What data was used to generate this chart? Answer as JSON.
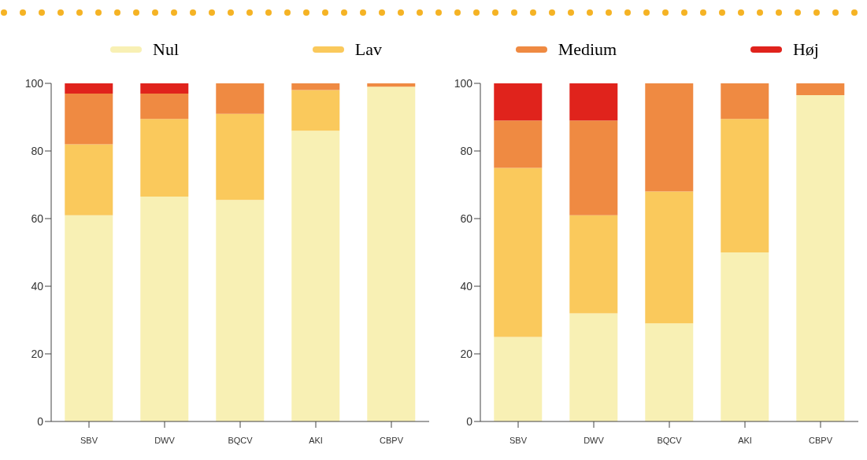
{
  "chart_data": [
    {
      "type": "bar",
      "stacked": true,
      "categories": [
        "SBV",
        "DWV",
        "BQCV",
        "AKI",
        "CBPV"
      ],
      "ylim": [
        0,
        100
      ],
      "yticks": [
        0,
        20,
        40,
        60,
        80,
        100
      ],
      "grid": false,
      "legend": "top",
      "series": [
        {
          "name": "Nul",
          "color": "#f8f0b4",
          "values": [
            61,
            66.5,
            65.5,
            86,
            99
          ]
        },
        {
          "name": "Lav",
          "color": "#fac95c",
          "values": [
            21,
            23,
            25.5,
            12,
            0
          ]
        },
        {
          "name": "Medium",
          "color": "#ef8a42",
          "values": [
            15,
            7.5,
            9,
            2,
            1
          ]
        },
        {
          "name": "Høj",
          "color": "#e0231c",
          "values": [
            3,
            3,
            0,
            0,
            0
          ]
        }
      ]
    },
    {
      "type": "bar",
      "stacked": true,
      "categories": [
        "SBV",
        "DWV",
        "BQCV",
        "AKI",
        "CBPV"
      ],
      "ylim": [
        0,
        100
      ],
      "yticks": [
        0,
        20,
        40,
        60,
        80,
        100
      ],
      "grid": false,
      "legend": false,
      "series": [
        {
          "color": "#f8f0b4",
          "values": [
            25,
            32,
            29,
            50,
            96.5
          ]
        },
        {
          "color": "#fac95c",
          "values": [
            50,
            29,
            39,
            39.5,
            0
          ]
        },
        {
          "color": "#ef8a42",
          "values": [
            14,
            28,
            32,
            10.5,
            3.5
          ]
        },
        {
          "color": "#e0231c",
          "values": [
            11,
            11,
            0,
            0,
            0
          ]
        }
      ]
    }
  ]
}
